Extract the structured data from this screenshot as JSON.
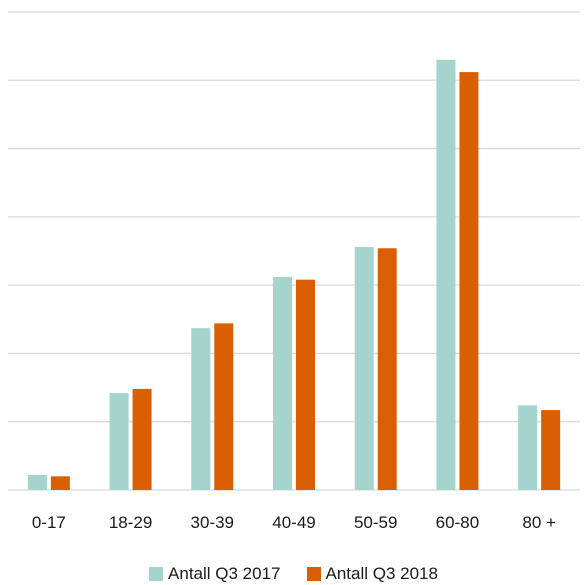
{
  "chart_data": {
    "type": "bar",
    "categories": [
      "0-17",
      "18-29",
      "30-39",
      "40-49",
      "50-59",
      "60-80",
      "80 +"
    ],
    "series": [
      {
        "name": "Antall Q3 2017",
        "color": "#a4d4cc",
        "values": [
          0.22,
          1.42,
          2.37,
          3.12,
          3.56,
          6.3,
          1.24
        ]
      },
      {
        "name": "Antall Q3 2018",
        "color": "#d95f02",
        "values": [
          0.2,
          1.48,
          2.44,
          3.08,
          3.54,
          6.12,
          1.17
        ]
      }
    ],
    "ylim": [
      0,
      7
    ],
    "grid": true,
    "legend_position": "bottom",
    "title": "",
    "xlabel": "",
    "ylabel": ""
  }
}
